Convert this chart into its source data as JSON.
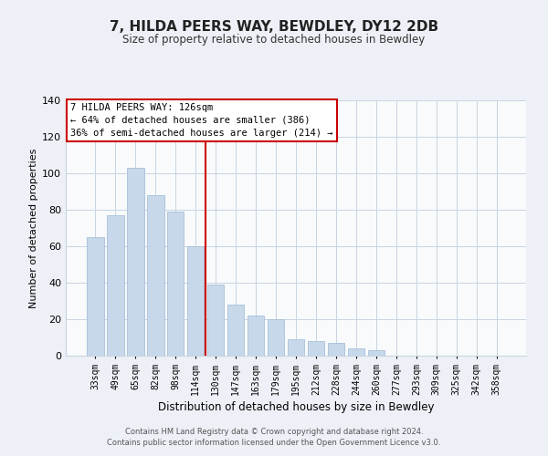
{
  "title": "7, HILDA PEERS WAY, BEWDLEY, DY12 2DB",
  "subtitle": "Size of property relative to detached houses in Bewdley",
  "xlabel": "Distribution of detached houses by size in Bewdley",
  "ylabel": "Number of detached properties",
  "bar_labels": [
    "33sqm",
    "49sqm",
    "65sqm",
    "82sqm",
    "98sqm",
    "114sqm",
    "130sqm",
    "147sqm",
    "163sqm",
    "179sqm",
    "195sqm",
    "212sqm",
    "228sqm",
    "244sqm",
    "260sqm",
    "277sqm",
    "293sqm",
    "309sqm",
    "325sqm",
    "342sqm",
    "358sqm"
  ],
  "bar_values": [
    65,
    77,
    103,
    88,
    79,
    60,
    39,
    28,
    22,
    20,
    9,
    8,
    7,
    4,
    3,
    0,
    0,
    0,
    0,
    0,
    0
  ],
  "bar_color": "#c8d8eb",
  "bar_edgecolor": "#a8c0d8",
  "vline_x": 6,
  "vline_color": "#cc0000",
  "ylim": [
    0,
    140
  ],
  "yticks": [
    0,
    20,
    40,
    60,
    80,
    100,
    120,
    140
  ],
  "annotation_title": "7 HILDA PEERS WAY: 126sqm",
  "annotation_line1": "← 64% of detached houses are smaller (386)",
  "annotation_line2": "36% of semi-detached houses are larger (214) →",
  "footer1": "Contains HM Land Registry data © Crown copyright and database right 2024.",
  "footer2": "Contains public sector information licensed under the Open Government Licence v3.0.",
  "background_color": "#edf1f7",
  "plot_background": "#f8fafc",
  "grid_color": "#c8d4e0"
}
